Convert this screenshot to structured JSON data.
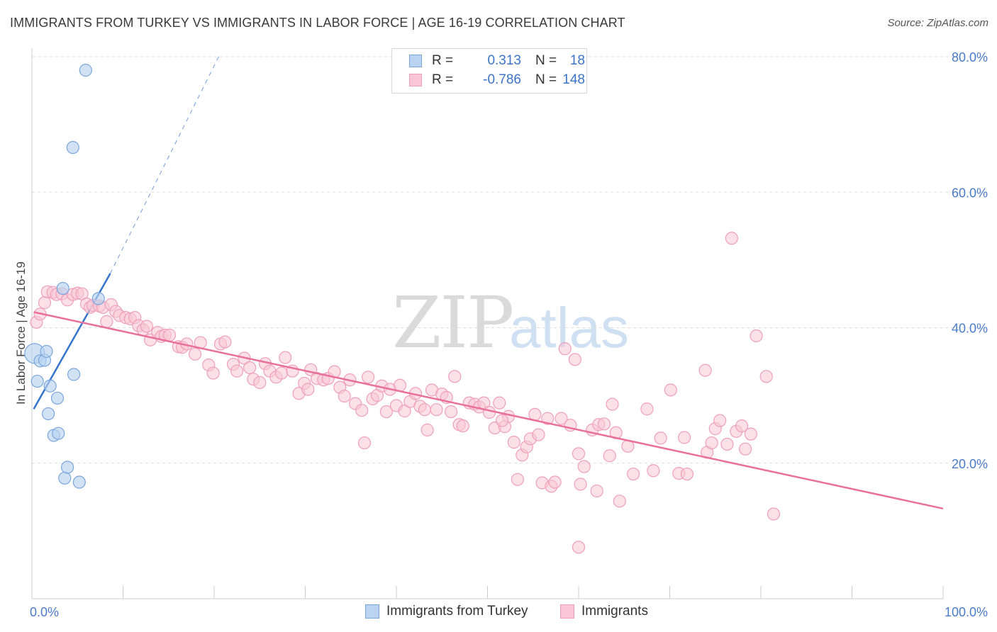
{
  "title": "IMMIGRANTS FROM TURKEY VS IMMIGRANTS IN LABOR FORCE | AGE 16-19 CORRELATION CHART",
  "source": "Source: ZipAtlas.com",
  "watermark": {
    "zip": "ZIP",
    "atlas": "atlas"
  },
  "legend_top": {
    "rows": [
      {
        "r_label": "R =",
        "r_value": "0.313",
        "n_label": "N =",
        "n_value": "18"
      },
      {
        "r_label": "R =",
        "r_value": "-0.786",
        "n_label": "N =",
        "n_value": "148"
      }
    ]
  },
  "legend_bottom": [
    {
      "label": "Immigrants from Turkey"
    },
    {
      "label": "Immigrants"
    }
  ],
  "colors": {
    "turkey_fill": "#b9d3f0",
    "turkey_stroke": "#7aa6dc",
    "turkey_line": "#3374cc",
    "imm_fill": "#f8c6d6",
    "imm_stroke": "#ef9fbb",
    "imm_line": "#e8709a",
    "tick_text": "#4a7cc9",
    "grid": "#dddddd"
  },
  "chart_data": {
    "type": "scatter",
    "title": "IMMIGRANTS FROM TURKEY VS IMMIGRANTS IN LABOR FORCE | AGE 16-19 CORRELATION CHART",
    "xlabel": "",
    "ylabel": "In Labor Force | Age 16-19",
    "xlim": [
      0,
      100
    ],
    "ylim": [
      0,
      80
    ],
    "x_tick_labels": [
      "0.0%",
      "100.0%"
    ],
    "y_ticks": [
      20,
      40,
      60,
      80
    ],
    "y_tick_labels": [
      "20.0%",
      "40.0%",
      "60.0%",
      "80.0%"
    ],
    "grid": "horizontal dashed",
    "legend_position": "top-center",
    "series": [
      {
        "name": "Immigrants from Turkey",
        "r": 0.313,
        "n": 18,
        "trend": {
          "x": [
            0.2,
            8.6
          ],
          "y": [
            28,
            48
          ]
        },
        "trend_extension": {
          "x": [
            8.6,
            20.5
          ],
          "y": [
            48,
            80
          ]
        },
        "points": [
          [
            0.3,
            36.2
          ],
          [
            0.6,
            32.1
          ],
          [
            0.9,
            35.1
          ],
          [
            1.4,
            35.2
          ],
          [
            1.6,
            36.5
          ],
          [
            1.8,
            27.3
          ],
          [
            2.0,
            31.4
          ],
          [
            2.4,
            24.1
          ],
          [
            2.8,
            29.6
          ],
          [
            2.9,
            24.4
          ],
          [
            3.4,
            45.8
          ],
          [
            3.6,
            17.8
          ],
          [
            3.9,
            19.4
          ],
          [
            4.5,
            66.6
          ],
          [
            4.6,
            33.1
          ],
          [
            5.2,
            17.2
          ],
          [
            7.3,
            44.3
          ],
          [
            5.9,
            78.0
          ]
        ]
      },
      {
        "name": "Immigrants",
        "r": -0.786,
        "n": 148,
        "trend": {
          "x": [
            0.2,
            100
          ],
          "y": [
            42.3,
            13.3
          ]
        },
        "points": [
          [
            0.5,
            40.8
          ],
          [
            0.9,
            42.0
          ],
          [
            1.4,
            43.7
          ],
          [
            1.7,
            45.3
          ],
          [
            2.3,
            45.2
          ],
          [
            2.7,
            44.9
          ],
          [
            3.3,
            45.0
          ],
          [
            3.9,
            44.1
          ],
          [
            4.5,
            44.9
          ],
          [
            5.0,
            45.1
          ],
          [
            5.5,
            45.0
          ],
          [
            6.0,
            43.5
          ],
          [
            6.4,
            43.0
          ],
          [
            6.7,
            43.3
          ],
          [
            7.4,
            43.2
          ],
          [
            7.8,
            43.0
          ],
          [
            8.2,
            40.9
          ],
          [
            8.7,
            43.4
          ],
          [
            9.2,
            42.4
          ],
          [
            9.6,
            41.8
          ],
          [
            10.3,
            41.5
          ],
          [
            10.8,
            41.3
          ],
          [
            11.3,
            41.5
          ],
          [
            11.7,
            40.3
          ],
          [
            12.2,
            39.7
          ],
          [
            12.6,
            40.2
          ],
          [
            13.0,
            38.2
          ],
          [
            13.8,
            39.3
          ],
          [
            14.2,
            38.7
          ],
          [
            14.6,
            38.9
          ],
          [
            15.1,
            38.9
          ],
          [
            16.1,
            37.2
          ],
          [
            16.5,
            37.1
          ],
          [
            17.0,
            37.6
          ],
          [
            17.9,
            36.1
          ],
          [
            18.5,
            37.8
          ],
          [
            19.4,
            34.5
          ],
          [
            19.9,
            33.3
          ],
          [
            20.7,
            37.6
          ],
          [
            21.2,
            37.9
          ],
          [
            22.1,
            34.6
          ],
          [
            22.5,
            33.6
          ],
          [
            23.3,
            35.5
          ],
          [
            23.9,
            34.1
          ],
          [
            24.3,
            32.4
          ],
          [
            25.0,
            31.9
          ],
          [
            25.6,
            34.7
          ],
          [
            26.1,
            33.6
          ],
          [
            26.8,
            32.7
          ],
          [
            27.4,
            33.3
          ],
          [
            27.8,
            35.6
          ],
          [
            28.6,
            33.6
          ],
          [
            29.3,
            30.3
          ],
          [
            29.9,
            31.8
          ],
          [
            30.3,
            30.9
          ],
          [
            30.6,
            33.8
          ],
          [
            31.3,
            32.5
          ],
          [
            32.0,
            32.3
          ],
          [
            32.5,
            32.5
          ],
          [
            33.2,
            33.5
          ],
          [
            33.8,
            31.2
          ],
          [
            34.3,
            29.9
          ],
          [
            34.9,
            32.3
          ],
          [
            35.5,
            28.8
          ],
          [
            36.2,
            27.8
          ],
          [
            36.5,
            23.0
          ],
          [
            36.9,
            32.7
          ],
          [
            37.4,
            29.5
          ],
          [
            37.9,
            30.0
          ],
          [
            38.4,
            31.4
          ],
          [
            38.9,
            27.6
          ],
          [
            39.3,
            30.9
          ],
          [
            40.0,
            28.5
          ],
          [
            40.4,
            31.5
          ],
          [
            40.9,
            27.7
          ],
          [
            41.5,
            29.1
          ],
          [
            42.1,
            30.3
          ],
          [
            42.6,
            28.4
          ],
          [
            43.1,
            27.9
          ],
          [
            43.4,
            24.9
          ],
          [
            43.9,
            30.8
          ],
          [
            44.4,
            27.9
          ],
          [
            45.0,
            30.2
          ],
          [
            45.5,
            29.7
          ],
          [
            46.0,
            27.6
          ],
          [
            46.4,
            32.8
          ],
          [
            46.9,
            25.7
          ],
          [
            47.3,
            25.5
          ],
          [
            48.0,
            28.9
          ],
          [
            48.6,
            28.7
          ],
          [
            49.1,
            28.3
          ],
          [
            49.6,
            28.9
          ],
          [
            50.2,
            27.5
          ],
          [
            50.8,
            25.2
          ],
          [
            51.3,
            28.9
          ],
          [
            51.9,
            25.4
          ],
          [
            52.3,
            26.9
          ],
          [
            52.9,
            23.1
          ],
          [
            53.3,
            17.6
          ],
          [
            53.8,
            21.2
          ],
          [
            54.3,
            22.4
          ],
          [
            54.7,
            23.6
          ],
          [
            55.2,
            27.2
          ],
          [
            55.6,
            24.2
          ],
          [
            56.0,
            17.1
          ],
          [
            56.6,
            26.6
          ],
          [
            57.0,
            16.6
          ],
          [
            57.4,
            17.2
          ],
          [
            58.1,
            26.6
          ],
          [
            58.5,
            36.9
          ],
          [
            59.1,
            25.6
          ],
          [
            59.6,
            35.3
          ],
          [
            60.0,
            21.4
          ],
          [
            60.2,
            16.9
          ],
          [
            60.6,
            19.5
          ],
          [
            61.5,
            24.9
          ],
          [
            62.0,
            15.9
          ],
          [
            62.2,
            25.7
          ],
          [
            62.8,
            25.8
          ],
          [
            63.4,
            21.1
          ],
          [
            63.7,
            28.7
          ],
          [
            64.1,
            24.5
          ],
          [
            64.5,
            14.4
          ],
          [
            65.4,
            22.5
          ],
          [
            66.0,
            18.4
          ],
          [
            69.0,
            23.7
          ],
          [
            68.2,
            18.9
          ],
          [
            71.0,
            18.5
          ],
          [
            71.6,
            23.8
          ],
          [
            70.1,
            30.8
          ],
          [
            73.9,
            33.7
          ],
          [
            74.1,
            21.6
          ],
          [
            74.6,
            23.0
          ],
          [
            75.0,
            25.1
          ],
          [
            75.5,
            26.3
          ],
          [
            76.3,
            22.8
          ],
          [
            76.8,
            53.2
          ],
          [
            77.3,
            24.7
          ],
          [
            77.9,
            25.5
          ],
          [
            78.3,
            22.1
          ],
          [
            78.9,
            24.3
          ],
          [
            79.5,
            38.8
          ],
          [
            80.6,
            32.8
          ],
          [
            81.4,
            12.5
          ],
          [
            60.0,
            7.6
          ],
          [
            71.9,
            18.4
          ],
          [
            67.5,
            28.0
          ],
          [
            51.6,
            26.3
          ]
        ]
      }
    ]
  }
}
